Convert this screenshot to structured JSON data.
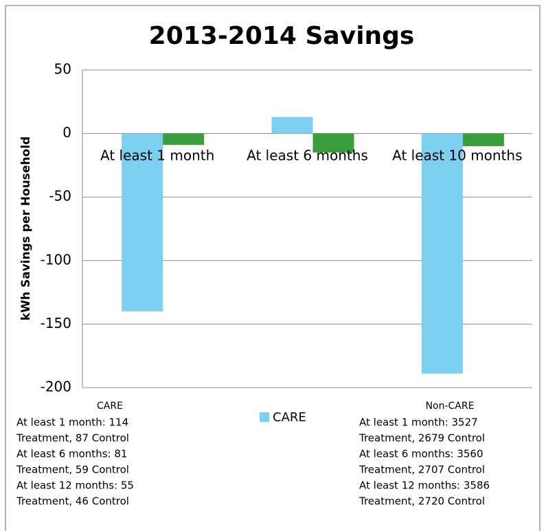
{
  "chart_data": {
    "type": "bar",
    "title": "2013-2014 Savings",
    "y_label": "kWh Savings per Household",
    "categories": [
      "At least 1 month",
      "At least 6 months",
      "At least 10 months"
    ],
    "series": [
      {
        "name": "CARE",
        "color": "#7ccfee",
        "values": [
          -140,
          13,
          -189
        ]
      },
      {
        "color": "#3a9c3a",
        "values": [
          -9,
          -15,
          -10
        ]
      }
    ],
    "ylim": [
      -200,
      50
    ],
    "yticks": [
      50,
      0,
      -50,
      -100,
      -150,
      -200
    ],
    "grid": true,
    "annotations": [
      {
        "heading": "CARE",
        "lines": [
          "At least 1 month:  114",
          "Treatment, 87 Control",
          "At least 6 months: 81",
          "Treatment, 59 Control",
          "At least 12 months:  55",
          "Treatment, 46 Control"
        ]
      },
      {
        "heading": "Non-CARE",
        "lines": [
          "At least 1 month:  3527",
          "Treatment, 2679 Control",
          "At least 6 months: 3560",
          "Treatment, 2707 Control",
          "At least 12 months:  3586",
          "Treatment, 2720 Control"
        ]
      }
    ]
  }
}
